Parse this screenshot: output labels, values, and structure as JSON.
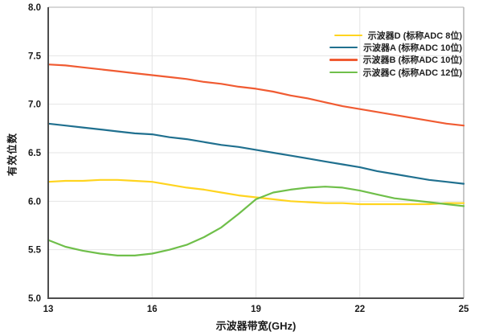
{
  "chart_data": {
    "type": "line",
    "title": "",
    "xlabel": "示波器带宽(GHz)",
    "ylabel": "有效位数",
    "xlim": [
      13,
      25
    ],
    "ylim": [
      5.0,
      8.0
    ],
    "grid": true,
    "legend_position": "top-right",
    "xticks": {
      "values": [
        13,
        16,
        19,
        22,
        25
      ],
      "labels": [
        "13",
        "16",
        "19",
        "22",
        "25"
      ]
    },
    "yticks": {
      "values": [
        5.0,
        5.5,
        6.0,
        6.5,
        7.0,
        7.5,
        8.0
      ],
      "labels": [
        "5.0",
        "5.5",
        "6.0",
        "6.5",
        "7.0",
        "7.5",
        "8.0"
      ]
    },
    "x": [
      13,
      13.5,
      14,
      14.5,
      15,
      15.5,
      16,
      16.5,
      17,
      17.5,
      18,
      18.5,
      19,
      19.5,
      20,
      20.5,
      21,
      21.5,
      22,
      22.5,
      23,
      23.5,
      24,
      24.5,
      25
    ],
    "series": [
      {
        "name": "示波器D (标称ADC 8位)",
        "color": "#ffd41f",
        "values": [
          6.2,
          6.21,
          6.21,
          6.22,
          6.22,
          6.21,
          6.2,
          6.17,
          6.14,
          6.12,
          6.09,
          6.06,
          6.04,
          6.02,
          6.0,
          5.99,
          5.98,
          5.98,
          5.97,
          5.97,
          5.97,
          5.97,
          5.97,
          5.98,
          5.98
        ]
      },
      {
        "name": "示波器A (标称ADC 10位)",
        "color": "#20708f",
        "values": [
          6.8,
          6.78,
          6.76,
          6.74,
          6.72,
          6.7,
          6.69,
          6.66,
          6.64,
          6.61,
          6.58,
          6.56,
          6.53,
          6.5,
          6.47,
          6.44,
          6.41,
          6.38,
          6.35,
          6.31,
          6.28,
          6.25,
          6.22,
          6.2,
          6.18
        ]
      },
      {
        "name": "示波器B (标称ADC 10位)",
        "color": "#f05b32",
        "values": [
          7.41,
          7.4,
          7.38,
          7.36,
          7.34,
          7.32,
          7.3,
          7.28,
          7.26,
          7.23,
          7.21,
          7.18,
          7.16,
          7.13,
          7.09,
          7.06,
          7.02,
          6.98,
          6.95,
          6.92,
          6.89,
          6.86,
          6.83,
          6.8,
          6.78
        ]
      },
      {
        "name": "示波器C (标称ADC 12位)",
        "color": "#6fbf4a",
        "values": [
          5.6,
          5.53,
          5.49,
          5.46,
          5.44,
          5.44,
          5.46,
          5.5,
          5.55,
          5.63,
          5.73,
          5.87,
          6.02,
          6.09,
          6.12,
          6.14,
          6.15,
          6.14,
          6.11,
          6.07,
          6.03,
          6.01,
          5.99,
          5.97,
          5.95
        ]
      }
    ]
  },
  "colors": {
    "background": "#ffffff",
    "grid": "#e4e4e4",
    "axis": "#4d4d4d",
    "border": "#b0b0b0",
    "tick_text": "#1a1a1a"
  }
}
